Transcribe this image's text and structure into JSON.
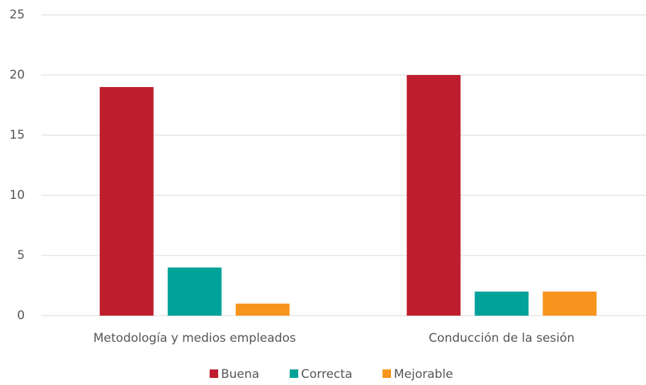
{
  "chart_data": {
    "type": "bar",
    "categories": [
      "Metodología y medios empleados",
      "Conducción de la sesión"
    ],
    "series": [
      {
        "name": "Buena",
        "color": "#be1e2d",
        "values": [
          19,
          20
        ]
      },
      {
        "name": "Correcta",
        "color": "#00a299",
        "values": [
          4,
          2
        ]
      },
      {
        "name": "Mejorable",
        "color": "#f7941d",
        "values": [
          1,
          2
        ]
      }
    ],
    "ylim": [
      0,
      25
    ],
    "yticks": [
      0,
      5,
      10,
      15,
      20,
      25
    ],
    "grid": true,
    "legend": "bottom"
  }
}
